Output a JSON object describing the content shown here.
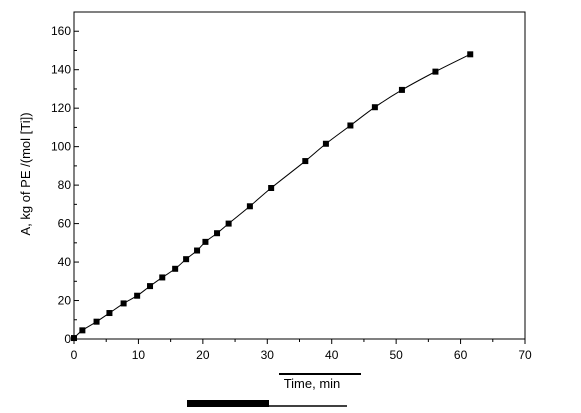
{
  "chart_data": {
    "type": "scatter",
    "title": "",
    "xlabel": "Time, min",
    "ylabel": "A, kg of PE /(mol [Ti])",
    "xlim": [
      0,
      70
    ],
    "ylim": [
      0,
      170
    ],
    "x_ticks": [
      0,
      10,
      20,
      30,
      40,
      50,
      60,
      70
    ],
    "y_ticks": [
      0,
      20,
      40,
      60,
      80,
      100,
      120,
      140,
      160
    ],
    "grid": false,
    "legend": "none",
    "series": [
      {
        "marker": "square",
        "line": "smooth",
        "color": "#000000",
        "x": [
          0,
          1.3,
          3.5,
          5.5,
          7.7,
          9.8,
          11.8,
          13.7,
          15.7,
          17.4,
          19.1,
          20.4,
          22.2,
          24.0,
          27.3,
          30.6,
          35.9,
          39.1,
          42.9,
          46.7,
          50.9,
          56.1,
          61.5
        ],
        "y": [
          0.5,
          4.5,
          9,
          13.5,
          18.5,
          22.5,
          27.5,
          32,
          36.5,
          41.5,
          46,
          50.5,
          55,
          60,
          69,
          78.5,
          92.5,
          101.5,
          111,
          120.5,
          129.5,
          139,
          148
        ]
      }
    ]
  }
}
